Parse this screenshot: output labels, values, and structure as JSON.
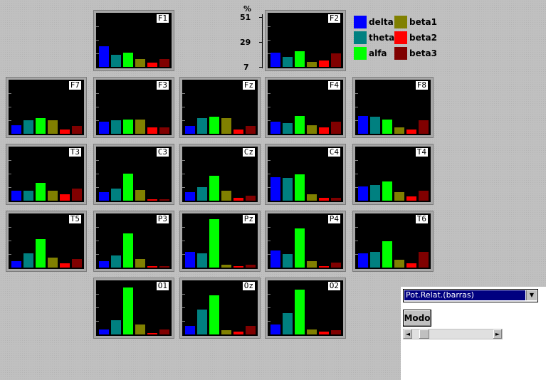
{
  "axis": {
    "unit": "%",
    "ticks": [
      "51",
      "29",
      "7"
    ]
  },
  "legend": [
    {
      "band": "delta",
      "color": "#0000ff"
    },
    {
      "band": "beta1",
      "color": "#808000"
    },
    {
      "band": "theta",
      "color": "#008080"
    },
    {
      "band": "beta2",
      "color": "#ff0000"
    },
    {
      "band": "alfa",
      "color": "#00ff00"
    },
    {
      "band": "beta3",
      "color": "#800000"
    }
  ],
  "band_colors": [
    "#0000ff",
    "#008080",
    "#00ff00",
    "#808000",
    "#ff0000",
    "#800000"
  ],
  "controls": {
    "mode_select": "Pot.Relat.(barras)",
    "mode_button": "Modo",
    "dropdown_icon": "chevron-down-icon",
    "scroll_left_icon": "arrow-left-icon",
    "scroll_right_icon": "arrow-right-icon"
  },
  "chart_data": {
    "type": "bar",
    "categories": [
      "delta",
      "theta",
      "alfa",
      "beta1",
      "beta2",
      "beta3"
    ],
    "ylim": [
      7,
      51
    ],
    "panels": [
      {
        "label": "F1",
        "values": [
          22,
          15,
          17,
          11,
          8,
          11
        ]
      },
      {
        "label": "F2",
        "values": [
          17,
          13,
          18,
          9,
          10,
          16
        ]
      },
      {
        "label": "F7",
        "values": [
          12,
          16,
          18,
          16,
          8,
          11
        ]
      },
      {
        "label": "F3",
        "values": [
          15,
          16,
          17,
          17,
          10,
          10
        ]
      },
      {
        "label": "Fz",
        "values": [
          11,
          18,
          19,
          18,
          8,
          11
        ]
      },
      {
        "label": "F4",
        "values": [
          15,
          14,
          20,
          12,
          10,
          15
        ]
      },
      {
        "label": "F8",
        "values": [
          20,
          19,
          17,
          10,
          8,
          16
        ]
      },
      {
        "label": "T3",
        "values": [
          13,
          13,
          20,
          13,
          10,
          15
        ]
      },
      {
        "label": "C3",
        "values": [
          12,
          15,
          28,
          14,
          6,
          6
        ]
      },
      {
        "label": "Cz",
        "values": [
          12,
          16,
          26,
          13,
          7,
          9
        ]
      },
      {
        "label": "C4",
        "values": [
          25,
          24,
          27,
          10,
          7,
          7
        ]
      },
      {
        "label": "T4",
        "values": [
          17,
          18,
          21,
          12,
          8,
          13
        ]
      },
      {
        "label": "T5",
        "values": [
          10,
          17,
          29,
          13,
          8,
          12
        ]
      },
      {
        "label": "P3",
        "values": [
          10,
          15,
          34,
          12,
          6,
          6
        ]
      },
      {
        "label": "Pz",
        "values": [
          18,
          17,
          46,
          7,
          6,
          7
        ]
      },
      {
        "label": "P4",
        "values": [
          19,
          16,
          38,
          10,
          6,
          9
        ]
      },
      {
        "label": "T6",
        "values": [
          17,
          18,
          27,
          11,
          8,
          18
        ]
      },
      {
        "label": "O1",
        "values": [
          9,
          17,
          45,
          13,
          6,
          9
        ]
      },
      {
        "label": "Oz",
        "values": [
          12,
          26,
          38,
          8,
          7,
          12
        ]
      },
      {
        "label": "O2",
        "values": [
          13,
          23,
          43,
          9,
          7,
          8
        ]
      }
    ]
  }
}
